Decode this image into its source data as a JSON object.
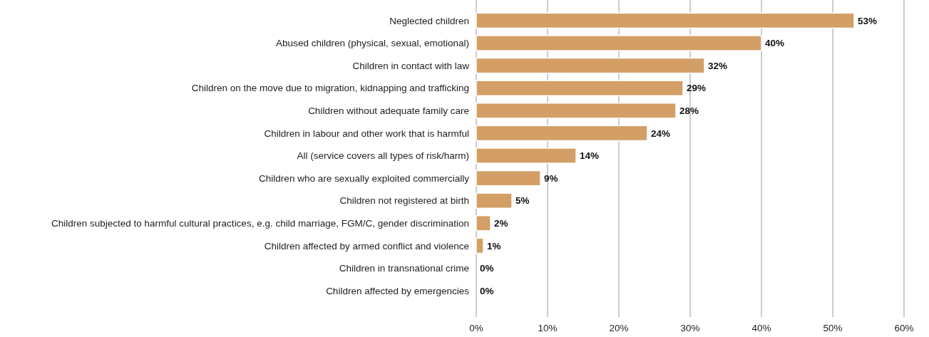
{
  "chart_data": {
    "type": "bar",
    "orientation": "horizontal",
    "categories": [
      "Neglected children",
      "Abused children (physical, sexual, emotional)",
      "Children in contact with law",
      "Children on the move due to migration, kidnapping and trafficking",
      "Children without adequate family care",
      "Children in labour and other work that is harmful",
      "All (service covers all types of risk/harm)",
      "Children who are sexually exploited commercially",
      "Children not registered at birth",
      "Children subjected to harmful cultural practices, e.g. child marriage, FGM/C, gender discrimination",
      "Children affected by armed conflict and violence",
      "Children in transnational crime",
      "Children affected by emergencies"
    ],
    "values": [
      53,
      40,
      32,
      29,
      28,
      24,
      14,
      9,
      5,
      2,
      1,
      0,
      0
    ],
    "value_labels": [
      "53%",
      "40%",
      "32%",
      "29%",
      "28%",
      "24%",
      "14%",
      "9%",
      "5%",
      "2%",
      "1%",
      "0%",
      "0%"
    ],
    "color": "#d39f66",
    "xlim": [
      0,
      60
    ],
    "xticks": [
      {
        "value": 0,
        "label": "0%"
      },
      {
        "value": 10,
        "label": "10%"
      },
      {
        "value": 20,
        "label": "20%"
      },
      {
        "value": 30,
        "label": "30%"
      },
      {
        "value": 40,
        "label": "40%"
      },
      {
        "value": 50,
        "label": "50%"
      },
      {
        "value": 60,
        "label": "60%"
      }
    ],
    "grid": "x"
  }
}
